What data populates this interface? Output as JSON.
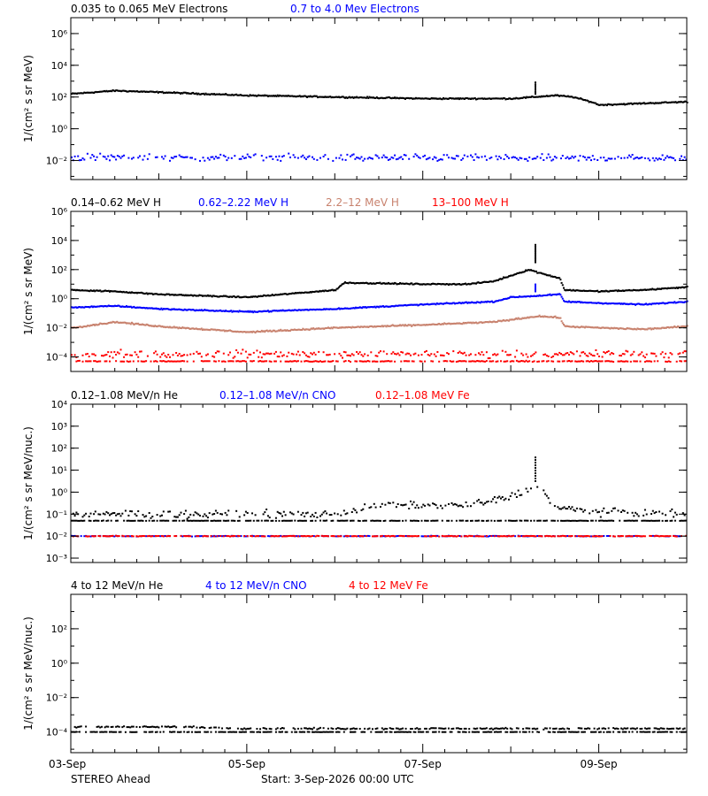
{
  "colors": {
    "black": "#000000",
    "blue": "#0000ff",
    "tan": "#c8826e",
    "red": "#ff0000"
  },
  "footer": {
    "spacecraft": "STEREO Ahead",
    "start": "Start:  3-Sep-2026 00:00 UTC"
  },
  "chart_data": [
    {
      "type": "scatter",
      "legend": [
        {
          "text": "0.035 to 0.065 MeV Electrons",
          "color": "black"
        },
        {
          "text": "0.7 to 4.0 Mev Electrons",
          "color": "blue"
        }
      ],
      "ylabel": "1/(cm² s sr MeV)",
      "yscale": "log",
      "ylim_exp": [
        -3.2,
        7
      ],
      "y_ticks": [
        {
          "exp": 6,
          "label": "10⁶"
        },
        {
          "exp": 4,
          "label": "10⁴"
        },
        {
          "exp": 2,
          "label": "10²"
        },
        {
          "exp": 0,
          "label": "10⁰"
        },
        {
          "exp": -2,
          "label": "10⁻²"
        }
      ],
      "xlim_days": [
        0,
        7
      ],
      "series": [
        {
          "name": "0.035 to 0.065 MeV Electrons",
          "color": "black",
          "style": "line",
          "day": [
            0,
            0.5,
            1,
            2,
            3,
            4,
            5,
            5.5,
            5.7,
            5.9,
            6.0,
            6.5,
            7
          ],
          "log": [
            2.2,
            2.4,
            2.3,
            2.1,
            2.0,
            1.9,
            1.9,
            2.1,
            2.0,
            1.7,
            1.5,
            1.6,
            1.7
          ],
          "noise": 0.05
        },
        {
          "name": "0.7 to 4.0 Mev Electrons",
          "color": "blue",
          "style": "scatter",
          "day": [
            0,
            7
          ],
          "log": [
            -1.8,
            -1.85
          ],
          "noise": 0.25
        }
      ],
      "annotations": [
        {
          "day": 5.27,
          "log_from": 2.2,
          "log_to": 3.0,
          "color": "black"
        }
      ]
    },
    {
      "type": "scatter",
      "legend": [
        {
          "text": "0.14–0.62 MeV H",
          "color": "black"
        },
        {
          "text": "0.62–2.22 MeV H",
          "color": "blue"
        },
        {
          "text": "2.2–12 MeV H",
          "color": "tan"
        },
        {
          "text": "13–100 MeV H",
          "color": "red"
        }
      ],
      "ylabel": "1/(cm² s sr MeV)",
      "yscale": "log",
      "ylim_exp": [
        -5,
        6
      ],
      "y_ticks": [
        {
          "exp": 6,
          "label": "10⁶"
        },
        {
          "exp": 4,
          "label": "10⁴"
        },
        {
          "exp": 2,
          "label": "10²"
        },
        {
          "exp": 0,
          "label": "10⁰"
        },
        {
          "exp": -2,
          "label": "10⁻²"
        },
        {
          "exp": -4,
          "label": "10⁻⁴"
        }
      ],
      "xlim_days": [
        0,
        7
      ],
      "series": [
        {
          "name": "0.14–0.62 MeV H",
          "color": "black",
          "style": "line",
          "day": [
            0,
            0.5,
            1,
            2,
            3.0,
            3.1,
            4,
            4.5,
            4.8,
            5.0,
            5.2,
            5.3,
            5.55,
            5.6,
            6,
            6.5,
            7
          ],
          "log": [
            0.6,
            0.5,
            0.3,
            0.1,
            0.6,
            1.1,
            1.0,
            1.0,
            1.2,
            1.6,
            2.0,
            1.8,
            1.4,
            0.6,
            0.5,
            0.6,
            0.8
          ],
          "noise": 0.05
        },
        {
          "name": "0.62–2.22 MeV H",
          "color": "blue",
          "style": "line",
          "day": [
            0,
            0.5,
            1,
            2,
            3,
            4,
            4.8,
            5.0,
            5.3,
            5.55,
            5.6,
            6,
            6.5,
            7
          ],
          "log": [
            -0.6,
            -0.5,
            -0.7,
            -0.9,
            -0.7,
            -0.4,
            -0.2,
            0.1,
            0.2,
            0.3,
            -0.2,
            -0.3,
            -0.4,
            -0.2
          ],
          "noise": 0.05
        },
        {
          "name": "2.2–12 MeV H",
          "color": "tan",
          "style": "line",
          "day": [
            0,
            0.5,
            1,
            2,
            3,
            4,
            4.8,
            5.3,
            5.55,
            5.6,
            6,
            6.5,
            7
          ],
          "log": [
            -2.0,
            -1.6,
            -1.9,
            -2.3,
            -2.0,
            -1.8,
            -1.6,
            -1.2,
            -1.3,
            -1.9,
            -2.0,
            -2.1,
            -1.9
          ],
          "noise": 0.06
        },
        {
          "name": "13–100 MeV H",
          "color": "red",
          "style": "scatter",
          "day": [
            0,
            7
          ],
          "log": [
            -3.8,
            -3.8
          ],
          "noise": 0.3
        },
        {
          "name": "13–100 MeV H",
          "color": "red",
          "style": "scatter",
          "day": [
            0,
            7
          ],
          "log": [
            -4.3,
            -4.3
          ],
          "noise": 0.04
        }
      ],
      "annotations": [
        {
          "day": 5.27,
          "log_from": 2.5,
          "log_to": 3.8,
          "color": "black"
        },
        {
          "day": 5.27,
          "log_from": 0.5,
          "log_to": 1.0,
          "color": "blue"
        }
      ]
    },
    {
      "type": "scatter",
      "legend": [
        {
          "text": "0.12–1.08 MeV/n He",
          "color": "black"
        },
        {
          "text": "0.12–1.08 MeV/n CNO",
          "color": "blue"
        },
        {
          "text": "0.12–1.08 MeV Fe",
          "color": "red"
        }
      ],
      "ylabel": "1/(cm² s sr MeV/nuc.)",
      "yscale": "log",
      "ylim_exp": [
        -3.2,
        4
      ],
      "y_ticks": [
        {
          "exp": 4,
          "label": "10⁴"
        },
        {
          "exp": 3,
          "label": "10³"
        },
        {
          "exp": 2,
          "label": "10²"
        },
        {
          "exp": 1,
          "label": "10¹"
        },
        {
          "exp": 0,
          "label": "10⁰"
        },
        {
          "exp": -1,
          "label": "10⁻¹"
        },
        {
          "exp": -2,
          "label": "10⁻²"
        },
        {
          "exp": -3,
          "label": "10⁻³"
        }
      ],
      "xlim_days": [
        0,
        7
      ],
      "series": [
        {
          "name": "0.12–1.08 MeV/n He",
          "color": "black",
          "style": "scatter",
          "day": [
            0,
            7
          ],
          "log": [
            -1.3,
            -1.3
          ],
          "noise": 0.01
        },
        {
          "name": "0.12–1.08 MeV/n He",
          "color": "black",
          "style": "scatter",
          "day": [
            0,
            0.5,
            3.0,
            3.5,
            4.5,
            5.0,
            5.3,
            5.5,
            6,
            7
          ],
          "log": [
            -1.0,
            -1.0,
            -1.0,
            -0.6,
            -0.6,
            -0.2,
            0.3,
            -0.7,
            -0.9,
            -1.0
          ],
          "noise": 0.2
        },
        {
          "name": "0.12–1.08 MeV/n CNO",
          "color": "blue",
          "style": "scatter",
          "day": [
            0,
            7
          ],
          "log": [
            -2.0,
            -2.0
          ],
          "noise": 0.02
        },
        {
          "name": "0.12–1.08 MeV Fe",
          "color": "red",
          "style": "scatter",
          "day": [
            0,
            7
          ],
          "log": [
            -2.0,
            -2.0
          ],
          "noise": 0.02
        }
      ],
      "annotations": [
        {
          "day": 5.27,
          "log_from": 0.5,
          "log_to": 1.6,
          "color": "black"
        }
      ]
    },
    {
      "type": "scatter",
      "legend": [
        {
          "text": "4 to 12 MeV/n He",
          "color": "black"
        },
        {
          "text": "4 to 12 MeV/n CNO",
          "color": "blue"
        },
        {
          "text": "4 to 12 MeV Fe",
          "color": "red"
        }
      ],
      "ylabel": "1/(cm² s sr MeV/nuc.)",
      "yscale": "log",
      "ylim_exp": [
        -5.2,
        4
      ],
      "y_ticks": [
        {
          "exp": 2,
          "label": "10²"
        },
        {
          "exp": 0,
          "label": "10⁰"
        },
        {
          "exp": -2,
          "label": "10⁻²"
        },
        {
          "exp": -4,
          "label": "10⁻⁴"
        }
      ],
      "xlim_days": [
        0,
        7
      ],
      "series": [
        {
          "name": "4 to 12 MeV/n He",
          "color": "black",
          "style": "scatter",
          "day": [
            0,
            7
          ],
          "log": [
            -4.0,
            -4.0
          ],
          "noise": 0.01
        },
        {
          "name": "4 to 12 MeV/n He",
          "color": "black",
          "style": "scatter",
          "day": [
            0,
            1.3,
            2,
            7
          ],
          "log": [
            -3.7,
            -3.7,
            -3.8,
            -3.8
          ],
          "noise": 0.05
        }
      ],
      "annotations": []
    }
  ],
  "x_axis": {
    "ticks": [
      {
        "day": 0,
        "label": "03-Sep"
      },
      {
        "day": 2,
        "label": "05-Sep"
      },
      {
        "day": 4,
        "label": "07-Sep"
      },
      {
        "day": 6,
        "label": "09-Sep"
      }
    ]
  }
}
